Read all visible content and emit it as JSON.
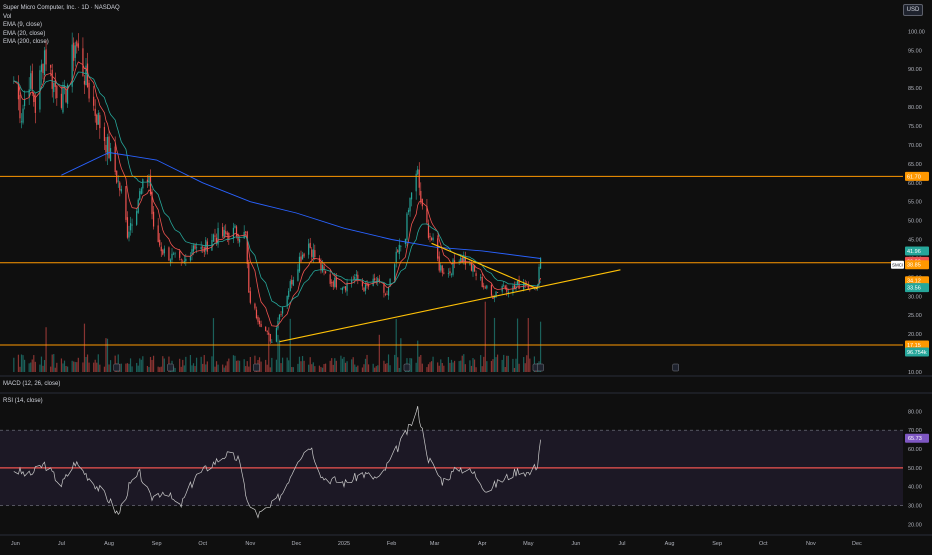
{
  "header": {
    "symbol_title": "Super Micro Computer, Inc. · 1D · NASDAQ",
    "volume_label": "Vol",
    "ema_labels": [
      "EMA (9, close)",
      "EMA (20, close)",
      "EMA (200, close)"
    ],
    "currency": "USD"
  },
  "colors": {
    "background": "#0f0f0f",
    "up": "#26a69a",
    "down": "#ef5350",
    "ema9": "#ef5350",
    "ema20": "#26a69a",
    "ema200": "#2962ff",
    "hline_orange": "#ff9800",
    "trendline_yellow": "#ffc107",
    "rsi_line": "#c9c9c9",
    "rsi_band": "rgba(126,87,194,0.12)",
    "rsi_mid": "#ef5350"
  },
  "price_axis": {
    "ticks": [
      "100.00",
      "95.00",
      "90.00",
      "85.00",
      "80.00",
      "75.00",
      "70.00",
      "65.00",
      "60.00",
      "55.00",
      "50.00",
      "45.00",
      "40.00",
      "35.00",
      "30.00",
      "25.00",
      "20.00",
      "15.00",
      "10.00"
    ],
    "badges": [
      {
        "text": "61.70",
        "color": "#ff9800",
        "value": 61.7
      },
      {
        "text": "41.96",
        "color": "#26a69a",
        "value": 41.96
      },
      {
        "text": "39.22",
        "color": "#ef5350",
        "value": 39.22
      },
      {
        "text": "38.85",
        "color": "#ff9800",
        "value": 38.35
      },
      {
        "text": "34.12",
        "color": "#ff9800",
        "value": 34.12
      },
      {
        "text": "33.56",
        "color": "#26a69a",
        "value": 32.3
      },
      {
        "text": "17.15",
        "color": "#ff9800",
        "value": 17.15
      },
      {
        "text": "96.754k",
        "color": "#26a69a",
        "value": 15.3
      }
    ],
    "symbol_tag": "SMCI"
  },
  "time_axis": {
    "labels": [
      "Jun",
      "Jul",
      "Aug",
      "Sep",
      "Oct",
      "Nov",
      "Dec",
      "2025",
      "Feb",
      "Mar",
      "Apr",
      "May",
      "Jun",
      "Jul",
      "Aug",
      "Sep",
      "Oct",
      "Nov",
      "Dec"
    ]
  },
  "macd": {
    "label": "MACD (12, 26, close)"
  },
  "rsi": {
    "label": "RSI (14, close)",
    "ticks": [
      "80.00",
      "70.00",
      "60.00",
      "50.00",
      "40.00",
      "30.00",
      "20.00"
    ],
    "current": {
      "text": "65.73",
      "value": 65.73
    }
  },
  "chart_data": {
    "type": "candlestick",
    "title": "Super Micro Computer, Inc. · 1D · NASDAQ",
    "ylim": [
      10,
      103
    ],
    "horizontal_levels": [
      61.7,
      38.85,
      17.15
    ],
    "trendlines": [
      {
        "name": "resistance",
        "from": {
          "date": "2025-02-27",
          "price": 44
        },
        "to": {
          "date": "2025-05-07",
          "price": 32
        }
      },
      {
        "name": "support",
        "from": {
          "date": "2024-11-20",
          "price": 18
        },
        "to": {
          "date": "2025-06-30",
          "price": 37
        }
      }
    ],
    "price_path": [
      [
        "2024-05-31",
        87
      ],
      [
        "2024-06-05",
        78
      ],
      [
        "2024-06-10",
        88
      ],
      [
        "2024-06-14",
        80
      ],
      [
        "2024-06-20",
        95
      ],
      [
        "2024-06-26",
        86
      ],
      [
        "2024-07-03",
        82
      ],
      [
        "2024-07-10",
        97
      ],
      [
        "2024-07-15",
        90
      ],
      [
        "2024-07-22",
        80
      ],
      [
        "2024-07-29",
        72
      ],
      [
        "2024-08-05",
        63
      ],
      [
        "2024-08-09",
        57
      ],
      [
        "2024-08-13",
        47
      ],
      [
        "2024-08-20",
        56
      ],
      [
        "2024-08-27",
        62
      ],
      [
        "2024-08-30",
        47
      ],
      [
        "2024-09-05",
        42
      ],
      [
        "2024-09-12",
        40
      ],
      [
        "2024-09-18",
        38
      ],
      [
        "2024-09-25",
        44
      ],
      [
        "2024-10-01",
        42
      ],
      [
        "2024-10-08",
        46
      ],
      [
        "2024-10-15",
        46
      ],
      [
        "2024-10-22",
        47
      ],
      [
        "2024-10-29",
        46
      ],
      [
        "2024-10-31",
        30
      ],
      [
        "2024-11-05",
        25
      ],
      [
        "2024-11-12",
        20
      ],
      [
        "2024-11-15",
        18
      ],
      [
        "2024-11-19",
        24
      ],
      [
        "2024-11-26",
        32
      ],
      [
        "2024-12-03",
        40
      ],
      [
        "2024-12-09",
        44
      ],
      [
        "2024-12-16",
        38
      ],
      [
        "2024-12-23",
        34
      ],
      [
        "2025-01-02",
        33
      ],
      [
        "2025-01-08",
        35
      ],
      [
        "2025-01-15",
        32
      ],
      [
        "2025-01-22",
        34
      ],
      [
        "2025-01-29",
        30
      ],
      [
        "2025-02-04",
        40
      ],
      [
        "2025-02-10",
        47
      ],
      [
        "2025-02-14",
        58
      ],
      [
        "2025-02-18",
        62
      ],
      [
        "2025-02-21",
        52
      ],
      [
        "2025-02-27",
        45
      ],
      [
        "2025-03-04",
        38
      ],
      [
        "2025-03-10",
        36
      ],
      [
        "2025-03-17",
        41
      ],
      [
        "2025-03-24",
        38
      ],
      [
        "2025-03-31",
        34
      ],
      [
        "2025-04-07",
        30
      ],
      [
        "2025-04-14",
        33
      ],
      [
        "2025-04-21",
        32
      ],
      [
        "2025-04-28",
        34
      ],
      [
        "2025-05-02",
        33
      ],
      [
        "2025-05-06",
        31
      ],
      [
        "2025-05-09",
        41
      ]
    ],
    "ema200_path": [
      [
        "2024-07-01",
        62
      ],
      [
        "2024-08-01",
        68
      ],
      [
        "2024-09-01",
        66
      ],
      [
        "2024-10-01",
        60
      ],
      [
        "2024-11-01",
        55
      ],
      [
        "2024-12-01",
        52
      ],
      [
        "2025-01-01",
        48
      ],
      [
        "2025-02-01",
        45
      ],
      [
        "2025-03-01",
        43
      ],
      [
        "2025-04-01",
        42
      ],
      [
        "2025-05-09",
        40
      ]
    ],
    "rsi_path": [
      [
        "2024-05-31",
        49
      ],
      [
        "2024-06-10",
        46
      ],
      [
        "2024-06-20",
        52
      ],
      [
        "2024-07-01",
        41
      ],
      [
        "2024-07-10",
        53
      ],
      [
        "2024-07-20",
        44
      ],
      [
        "2024-08-01",
        33
      ],
      [
        "2024-08-07",
        25
      ],
      [
        "2024-08-14",
        40
      ],
      [
        "2024-08-21",
        47
      ],
      [
        "2024-08-28",
        34
      ],
      [
        "2024-09-06",
        38
      ],
      [
        "2024-09-16",
        29
      ],
      [
        "2024-09-26",
        45
      ],
      [
        "2024-10-07",
        52
      ],
      [
        "2024-10-16",
        57
      ],
      [
        "2024-10-24",
        55
      ],
      [
        "2024-10-31",
        30
      ],
      [
        "2024-11-06",
        25
      ],
      [
        "2024-11-14",
        29
      ],
      [
        "2024-11-22",
        37
      ],
      [
        "2024-12-02",
        55
      ],
      [
        "2024-12-10",
        62
      ],
      [
        "2024-12-18",
        45
      ],
      [
        "2025-01-02",
        42
      ],
      [
        "2025-01-13",
        47
      ],
      [
        "2025-01-24",
        44
      ],
      [
        "2025-02-03",
        58
      ],
      [
        "2025-02-13",
        72
      ],
      [
        "2025-02-18",
        81
      ],
      [
        "2025-02-25",
        55
      ],
      [
        "2025-03-06",
        43
      ],
      [
        "2025-03-17",
        50
      ],
      [
        "2025-03-27",
        47
      ],
      [
        "2025-04-04",
        38
      ],
      [
        "2025-04-15",
        44
      ],
      [
        "2025-04-25",
        49
      ],
      [
        "2025-05-02",
        47
      ],
      [
        "2025-05-07",
        52
      ],
      [
        "2025-05-09",
        65.73
      ]
    ],
    "rsi_levels": {
      "upper": 70,
      "middle": 50,
      "lower": 30
    }
  }
}
